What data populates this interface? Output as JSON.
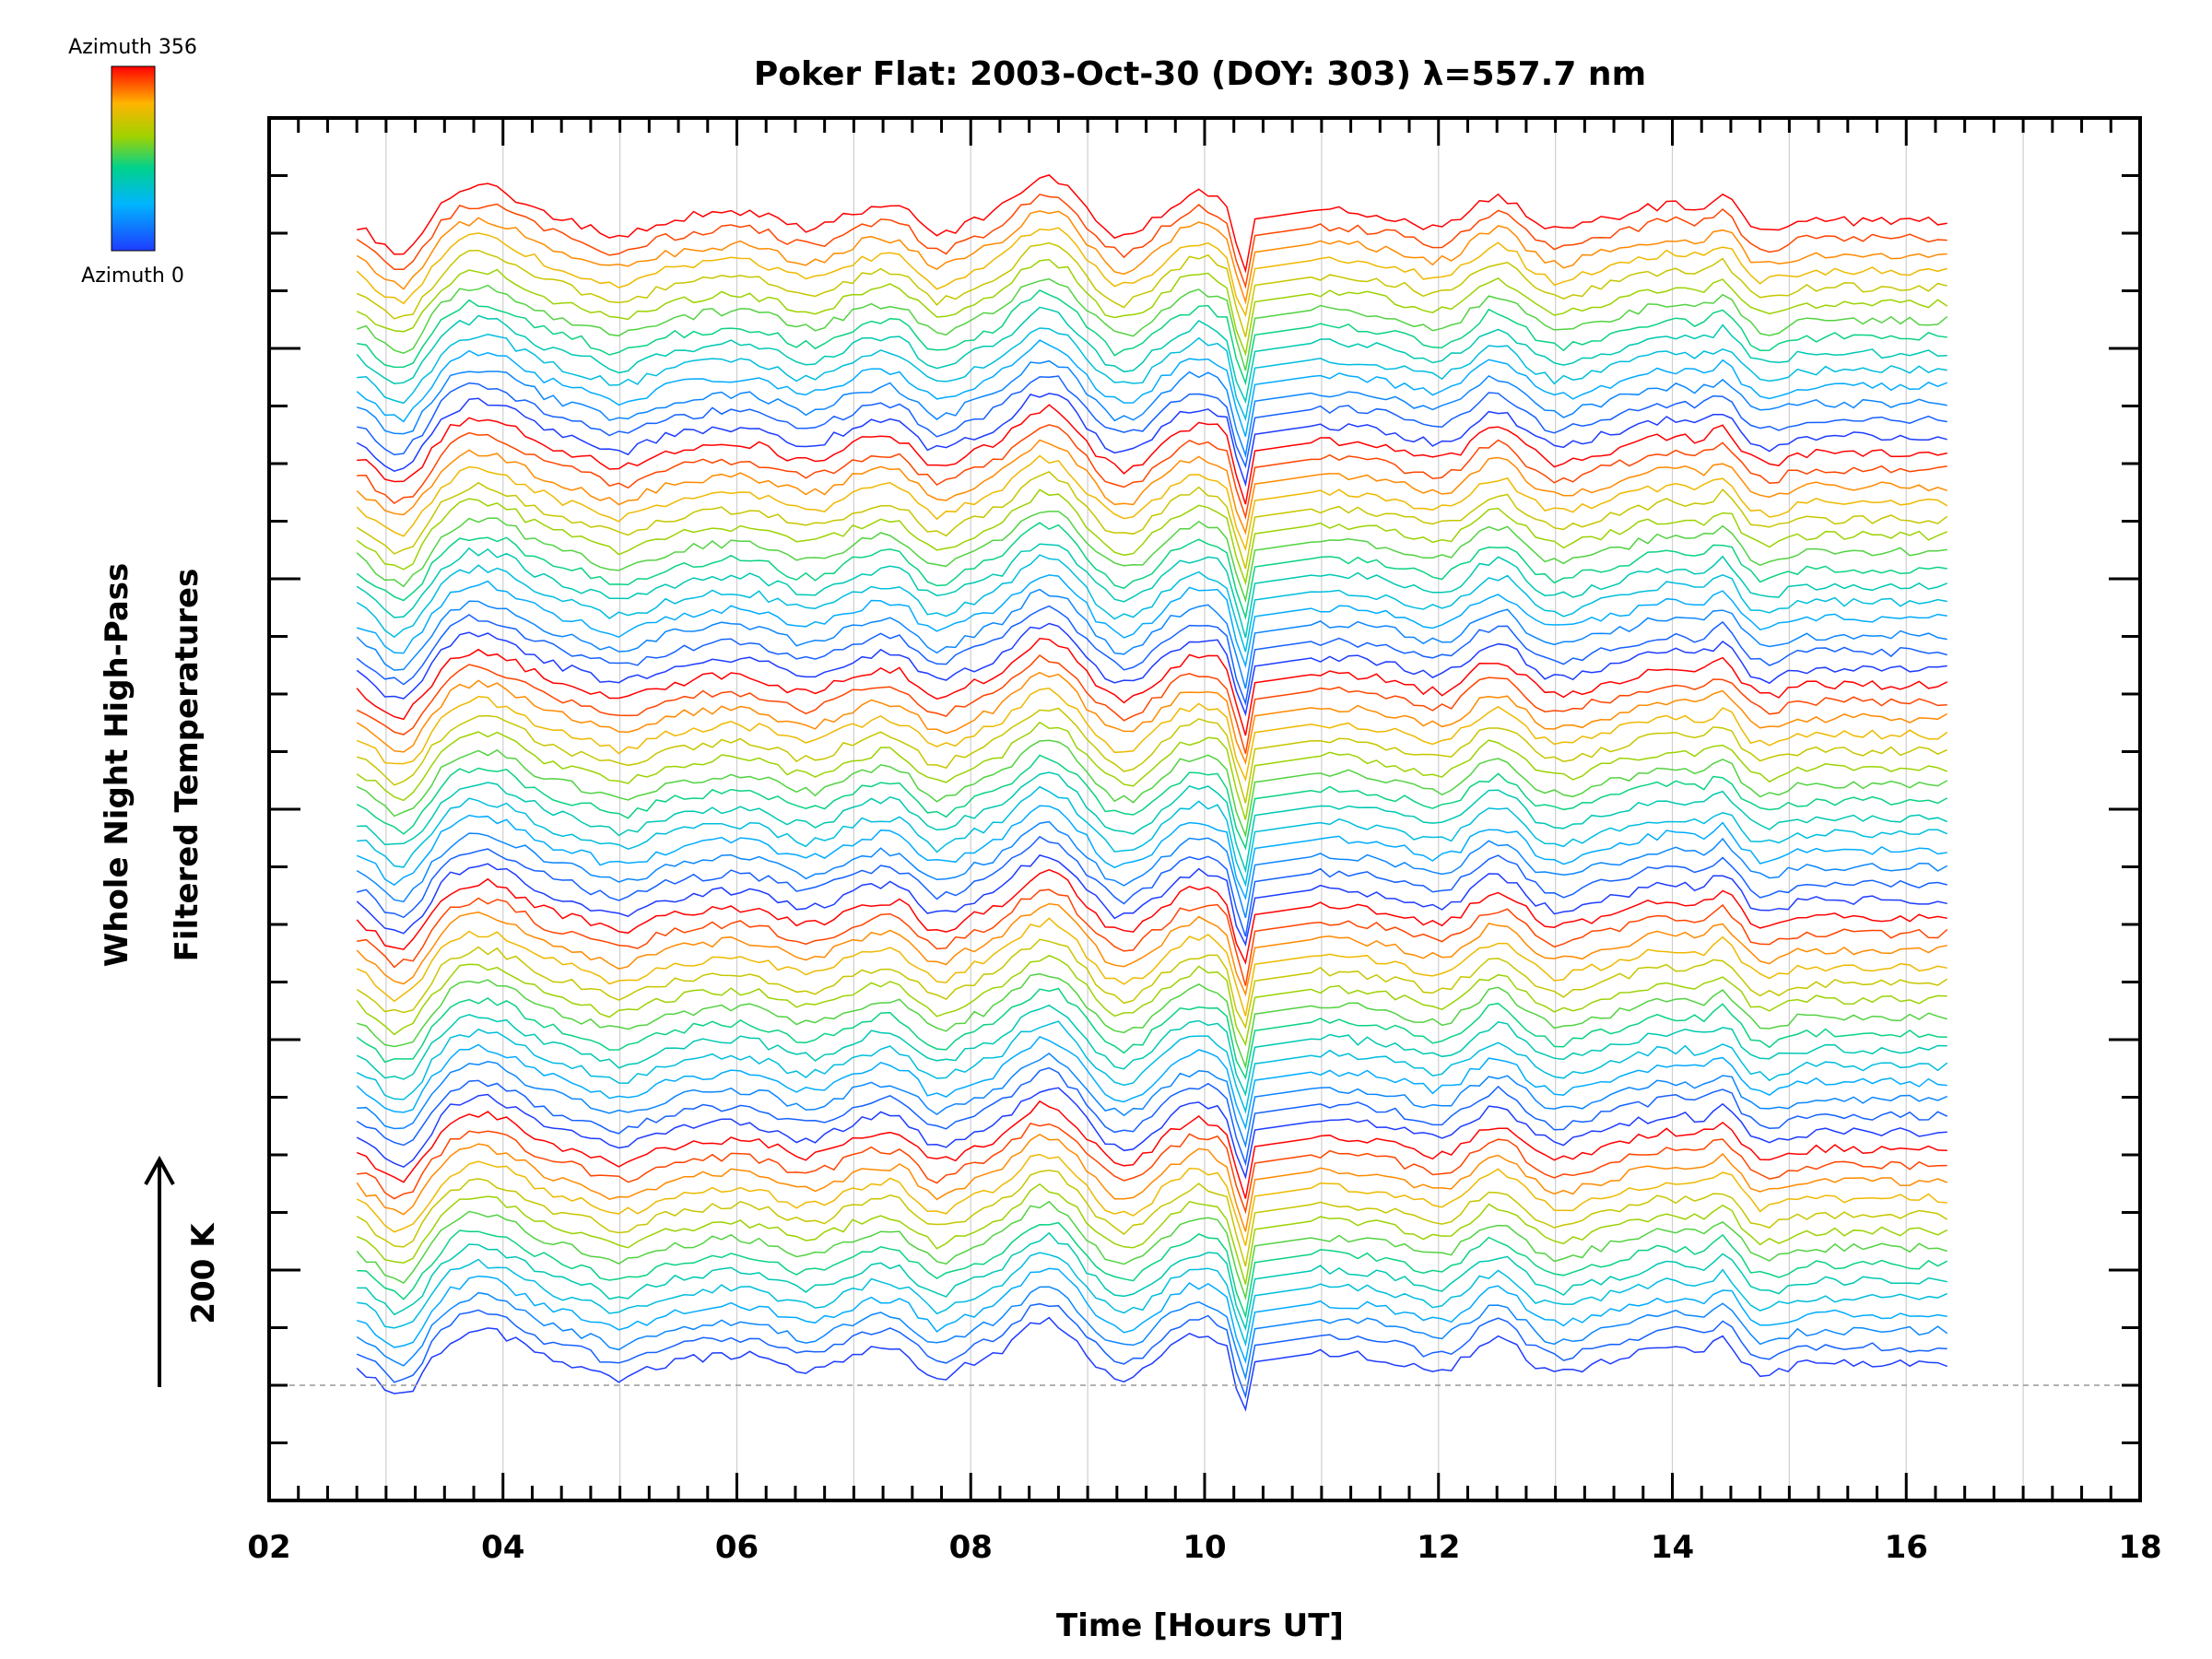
{
  "chart_data": {
    "type": "line",
    "title": "Poker Flat: 2003-Oct-30 (DOY: 303) λ=557.7 nm",
    "xlabel": "Time [Hours UT]",
    "ylabel_line1": "Whole Night High-Pass",
    "ylabel_line2": "Filtered Temperatures",
    "scale_label": "200 K",
    "x_tick_labels": [
      "02",
      "04",
      "06",
      "08",
      "10",
      "12",
      "14",
      "16",
      "18"
    ],
    "xlim": [
      2,
      18
    ],
    "x_range_data": [
      2.75,
      16.35
    ],
    "gap_at_hours": 10.3,
    "grid": "vertical dotted, every hour",
    "colorbar": {
      "top_label": "Azimuth 356",
      "bottom_label": "Azimuth 0",
      "colormap": "rainbow (blue to red)",
      "min": 0,
      "max": 356
    },
    "series_count": 70,
    "series_note": "Stacked high-pass filtered temperature traces, one per azimuth, colored by azimuth"
  }
}
